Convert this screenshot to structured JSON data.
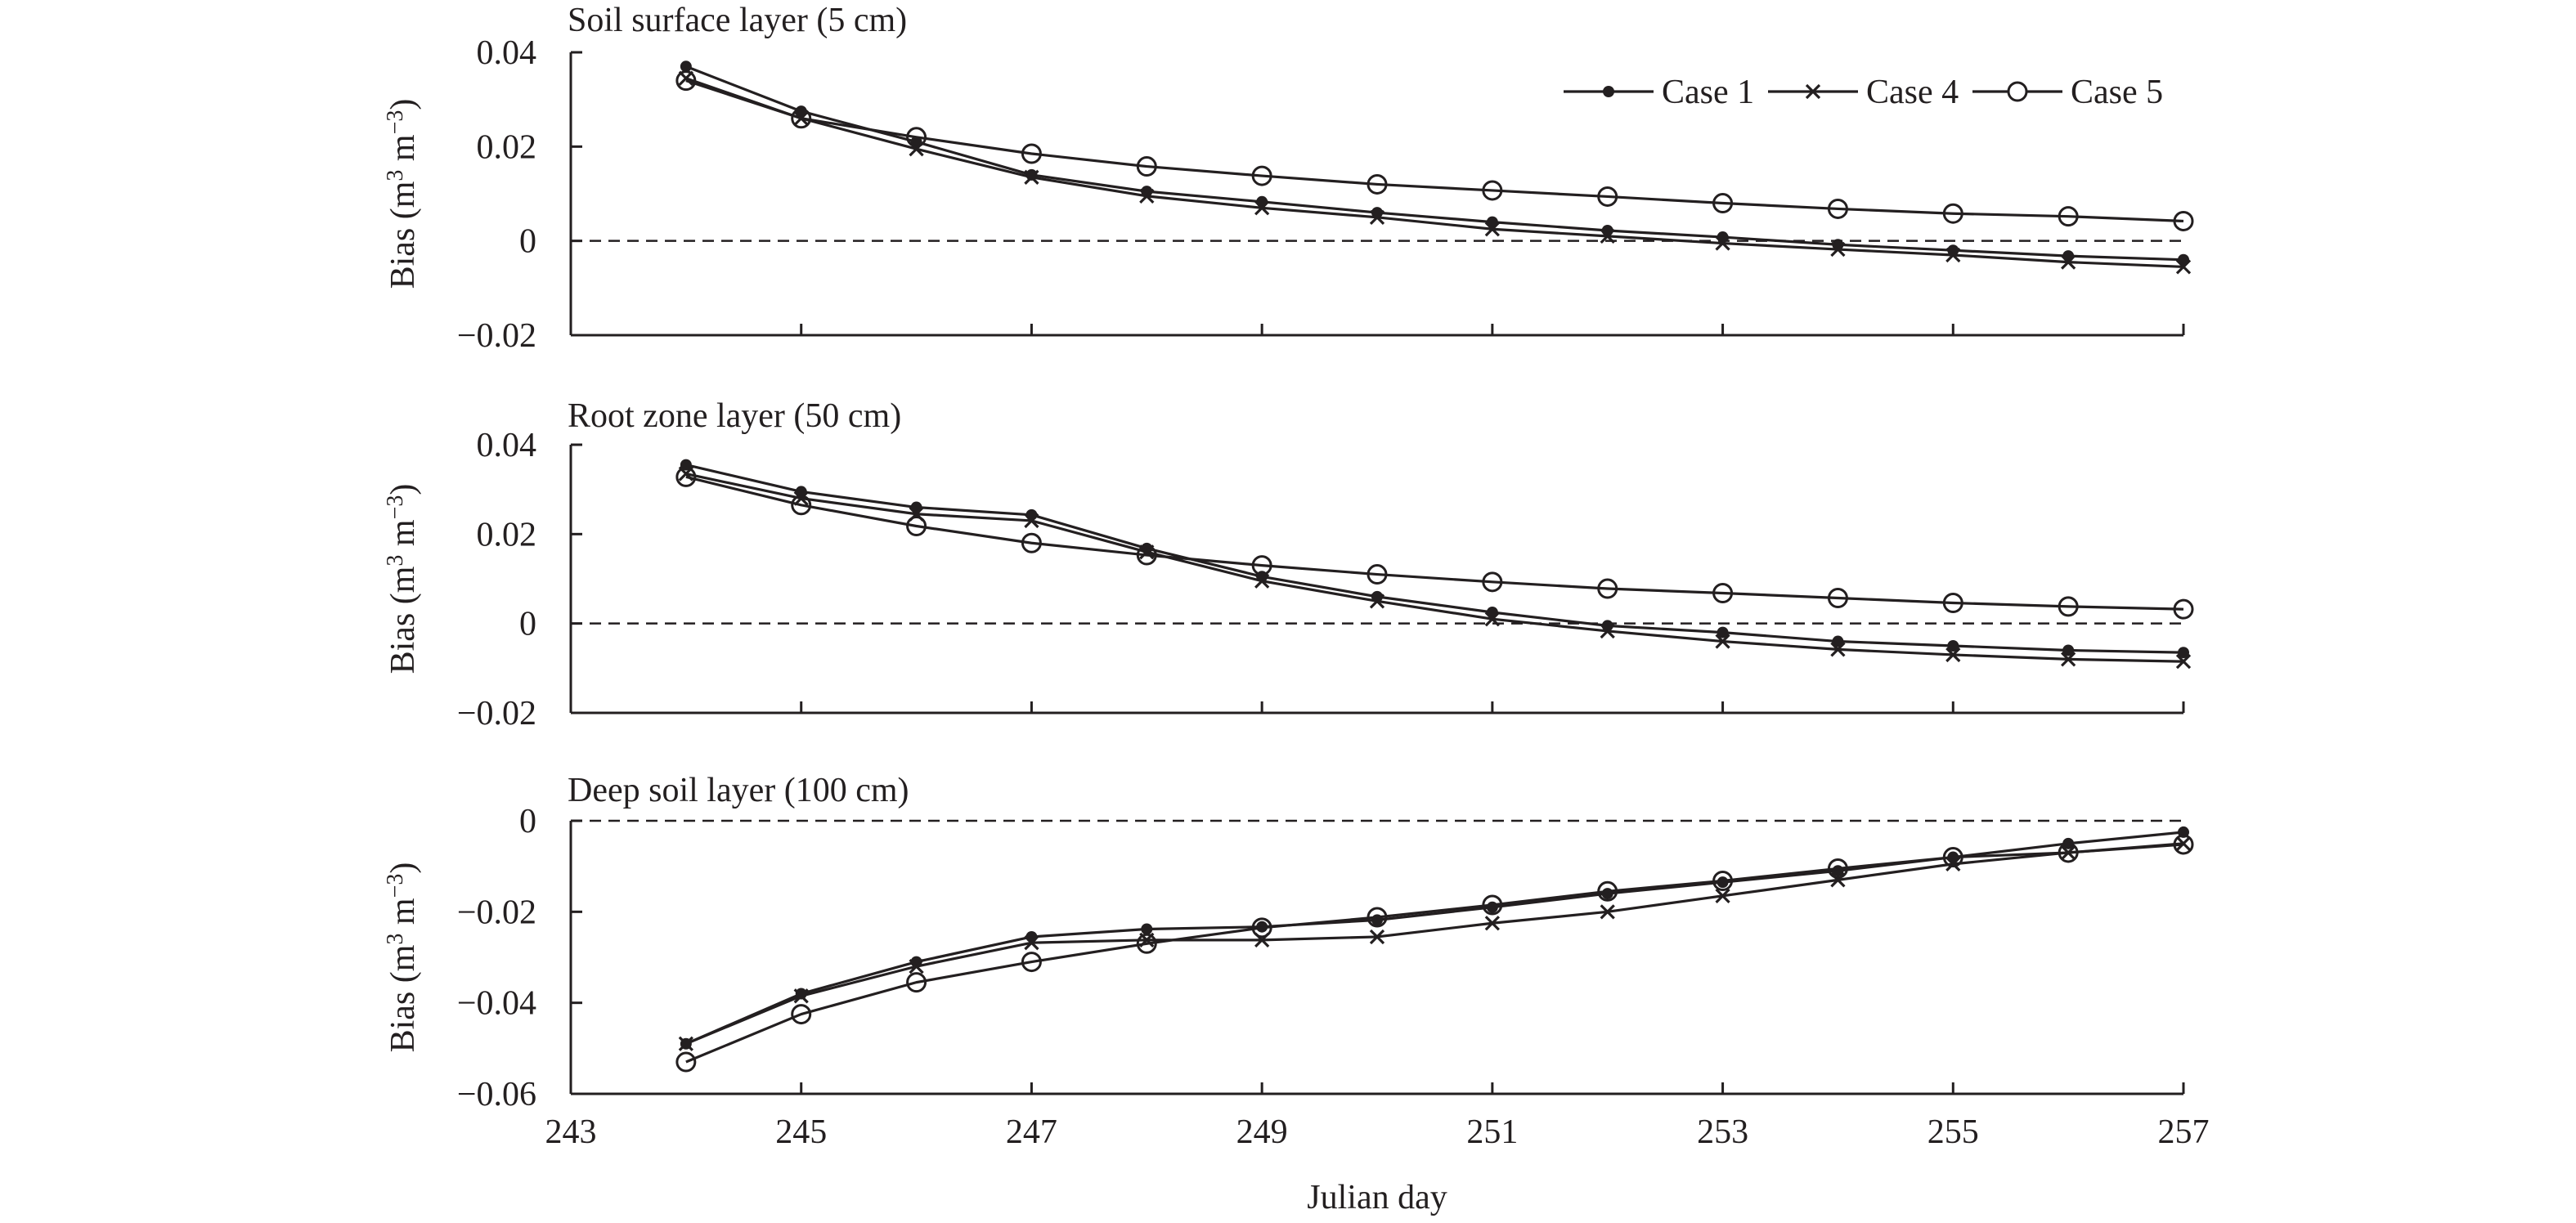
{
  "colors": {
    "line": "#231f20",
    "background": "#ffffff"
  },
  "chart_data": [
    {
      "type": "line",
      "title": "Soil surface layer (5 cm)",
      "xlabel": "Julian day",
      "ylabel": "Bias (m3 m−3)",
      "ylabel_parts": {
        "pre": "Bias (m",
        "sup1": "3",
        "mid": " m",
        "sup2": "−3",
        "post": ")"
      },
      "xlim": [
        243,
        257
      ],
      "ylim": [
        -0.02,
        0.04
      ],
      "yticks": [
        -0.02,
        0,
        0.02,
        0.04
      ],
      "ytick_labels": [
        "−0.02",
        "0",
        "0.02",
        "0.04"
      ],
      "x": [
        244,
        245,
        246,
        247,
        248,
        249,
        250,
        251,
        252,
        253,
        254,
        255,
        256,
        257
      ],
      "reference_line": 0,
      "legend": {
        "position": "top-right",
        "entries": [
          "Case 1",
          "Case 4",
          "Case 5"
        ]
      },
      "series": [
        {
          "name": "Case 1",
          "marker": "dot",
          "values": [
            0.037,
            0.0275,
            0.021,
            0.014,
            0.0105,
            0.0083,
            0.006,
            0.004,
            0.0022,
            0.0008,
            -0.0008,
            -0.002,
            -0.0032,
            -0.004
          ]
        },
        {
          "name": "Case 4",
          "marker": "x",
          "values": [
            0.0345,
            0.026,
            0.0195,
            0.0135,
            0.0095,
            0.007,
            0.005,
            0.0025,
            0.001,
            -0.0005,
            -0.0018,
            -0.003,
            -0.0045,
            -0.0055
          ]
        },
        {
          "name": "Case 5",
          "marker": "circle",
          "values": [
            0.034,
            0.026,
            0.022,
            0.0185,
            0.0158,
            0.0138,
            0.012,
            0.0107,
            0.0094,
            0.008,
            0.0068,
            0.0058,
            0.0052,
            0.0042
          ]
        }
      ]
    },
    {
      "type": "line",
      "title": "Root zone layer (50 cm)",
      "xlabel": "Julian day",
      "ylabel": "Bias (m3 m−3)",
      "ylabel_parts": {
        "pre": "Bias (m",
        "sup1": "3",
        "mid": " m",
        "sup2": "−3",
        "post": ")"
      },
      "xlim": [
        243,
        257
      ],
      "ylim": [
        -0.02,
        0.04
      ],
      "yticks": [
        -0.02,
        0,
        0.02,
        0.04
      ],
      "ytick_labels": [
        "−0.02",
        "0",
        "0.02",
        "0.04"
      ],
      "x": [
        244,
        245,
        246,
        247,
        248,
        249,
        250,
        251,
        252,
        253,
        254,
        255,
        256,
        257
      ],
      "reference_line": 0,
      "series": [
        {
          "name": "Case 1",
          "marker": "dot",
          "values": [
            0.0355,
            0.0295,
            0.026,
            0.0243,
            0.0168,
            0.0105,
            0.006,
            0.0025,
            -0.0005,
            -0.002,
            -0.004,
            -0.005,
            -0.006,
            -0.0065
          ]
        },
        {
          "name": "Case 4",
          "marker": "x",
          "values": [
            0.0335,
            0.028,
            0.0245,
            0.023,
            0.016,
            0.0095,
            0.005,
            0.001,
            -0.0017,
            -0.004,
            -0.0058,
            -0.007,
            -0.008,
            -0.0085
          ]
        },
        {
          "name": "Case 5",
          "marker": "circle",
          "values": [
            0.0328,
            0.0265,
            0.0218,
            0.018,
            0.0153,
            0.013,
            0.011,
            0.0093,
            0.0078,
            0.0068,
            0.0057,
            0.0046,
            0.0038,
            0.0032
          ]
        }
      ]
    },
    {
      "type": "line",
      "title": "Deep soil layer (100 cm)",
      "xlabel": "Julian day",
      "ylabel": "Bias (m3 m−3)",
      "ylabel_parts": {
        "pre": "Bias (m",
        "sup1": "3",
        "mid": " m",
        "sup2": "−3",
        "post": ")"
      },
      "xlim": [
        243,
        257
      ],
      "ylim": [
        -0.06,
        0
      ],
      "yticks": [
        -0.06,
        -0.04,
        -0.02,
        0
      ],
      "ytick_labels": [
        "−0.06",
        "−0.04",
        "−0.02",
        "0"
      ],
      "xticks": [
        243,
        245,
        247,
        249,
        251,
        253,
        255,
        257
      ],
      "xtick_labels": [
        "243",
        "245",
        "247",
        "249",
        "251",
        "253",
        "255",
        "257"
      ],
      "x": [
        244,
        245,
        246,
        247,
        248,
        249,
        250,
        251,
        252,
        253,
        254,
        255,
        256,
        257
      ],
      "reference_line": 0,
      "series": [
        {
          "name": "Case 1",
          "marker": "dot",
          "values": [
            -0.049,
            -0.038,
            -0.031,
            -0.0255,
            -0.0238,
            -0.0233,
            -0.0218,
            -0.019,
            -0.016,
            -0.0135,
            -0.011,
            -0.008,
            -0.005,
            -0.0025
          ]
        },
        {
          "name": "Case 4",
          "marker": "x",
          "values": [
            -0.049,
            -0.0385,
            -0.032,
            -0.0268,
            -0.0262,
            -0.0262,
            -0.0255,
            -0.0225,
            -0.02,
            -0.0165,
            -0.013,
            -0.0095,
            -0.007,
            -0.005
          ]
        },
        {
          "name": "Case 5",
          "marker": "circle",
          "values": [
            -0.053,
            -0.0425,
            -0.0355,
            -0.031,
            -0.027,
            -0.0235,
            -0.0212,
            -0.0185,
            -0.0155,
            -0.0132,
            -0.0105,
            -0.008,
            -0.007,
            -0.0052
          ]
        }
      ]
    }
  ]
}
